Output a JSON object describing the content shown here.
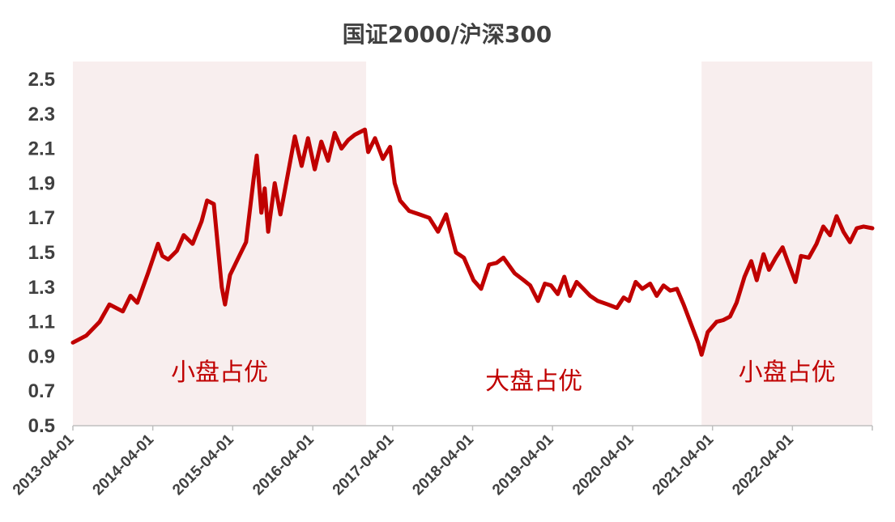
{
  "chart_data": {
    "type": "line",
    "title": "国证2000/沪深300",
    "ylim": [
      0.5,
      2.5
    ],
    "y_ticks": [
      "2.5",
      "2.3",
      "2.1",
      "1.9",
      "1.7",
      "1.5",
      "1.3",
      "1.1",
      "0.9",
      "0.7",
      "0.5"
    ],
    "x_ticks": [
      "2013-04-01",
      "2014-04-01",
      "2015-04-01",
      "2016-04-01",
      "2017-04-01",
      "2018-04-01",
      "2019-04-01",
      "2020-04-01",
      "2021-04-01",
      "2022-04-01"
    ],
    "xlim": [
      "2013-04-01",
      "2023-04-01"
    ],
    "grid": false,
    "regions": [
      {
        "label": "小盘占优",
        "start": "2013-04-01",
        "end": "2016-12-01",
        "color": "#f8eeee"
      },
      {
        "label": "大盘占优",
        "start": "2016-12-01",
        "end": "2021-02-10",
        "color": "#ffffff"
      },
      {
        "label": "小盘占优",
        "start": "2021-02-10",
        "end": "2023-04-01",
        "color": "#f8eeee"
      }
    ],
    "series": [
      {
        "color": "#c00000",
        "points": [
          [
            "2013-04-01",
            0.98
          ],
          [
            "2013-06-01",
            1.02
          ],
          [
            "2013-08-01",
            1.1
          ],
          [
            "2013-09-15",
            1.2
          ],
          [
            "2013-11-15",
            1.16
          ],
          [
            "2013-12-20",
            1.25
          ],
          [
            "2014-01-20",
            1.21
          ],
          [
            "2014-03-10",
            1.38
          ],
          [
            "2014-04-25",
            1.55
          ],
          [
            "2014-05-15",
            1.48
          ],
          [
            "2014-06-10",
            1.46
          ],
          [
            "2014-07-20",
            1.51
          ],
          [
            "2014-08-20",
            1.6
          ],
          [
            "2014-09-30",
            1.55
          ],
          [
            "2014-11-10",
            1.68
          ],
          [
            "2014-12-05",
            1.8
          ],
          [
            "2015-01-05",
            1.78
          ],
          [
            "2015-02-10",
            1.3
          ],
          [
            "2015-02-25",
            1.2
          ],
          [
            "2015-03-20",
            1.37
          ],
          [
            "2015-05-01",
            1.48
          ],
          [
            "2015-06-01",
            1.56
          ],
          [
            "2015-07-05",
            1.92
          ],
          [
            "2015-07-20",
            2.06
          ],
          [
            "2015-08-10",
            1.73
          ],
          [
            "2015-08-25",
            1.87
          ],
          [
            "2015-09-10",
            1.62
          ],
          [
            "2015-10-10",
            1.9
          ],
          [
            "2015-11-05",
            1.72
          ],
          [
            "2015-12-10",
            1.96
          ],
          [
            "2016-01-10",
            2.17
          ],
          [
            "2016-02-10",
            2.0
          ],
          [
            "2016-03-10",
            2.16
          ],
          [
            "2016-04-10",
            1.98
          ],
          [
            "2016-05-10",
            2.14
          ],
          [
            "2016-06-10",
            2.03
          ],
          [
            "2016-07-10",
            2.19
          ],
          [
            "2016-08-10",
            2.1
          ],
          [
            "2016-09-10",
            2.15
          ],
          [
            "2016-10-10",
            2.18
          ],
          [
            "2016-11-25",
            2.21
          ],
          [
            "2016-12-10",
            2.08
          ],
          [
            "2017-01-10",
            2.16
          ],
          [
            "2017-02-15",
            2.04
          ],
          [
            "2017-03-20",
            2.11
          ],
          [
            "2017-04-10",
            1.9
          ],
          [
            "2017-05-05",
            1.8
          ],
          [
            "2017-06-15",
            1.74
          ],
          [
            "2017-08-01",
            1.72
          ],
          [
            "2017-09-15",
            1.7
          ],
          [
            "2017-10-25",
            1.62
          ],
          [
            "2017-12-01",
            1.72
          ],
          [
            "2018-01-15",
            1.5
          ],
          [
            "2018-02-20",
            1.47
          ],
          [
            "2018-04-05",
            1.34
          ],
          [
            "2018-05-10",
            1.29
          ],
          [
            "2018-06-15",
            1.43
          ],
          [
            "2018-07-20",
            1.44
          ],
          [
            "2018-08-20",
            1.47
          ],
          [
            "2018-10-10",
            1.38
          ],
          [
            "2018-11-20",
            1.34
          ],
          [
            "2018-12-20",
            1.31
          ],
          [
            "2019-01-25",
            1.22
          ],
          [
            "2019-02-25",
            1.32
          ],
          [
            "2019-03-25",
            1.31
          ],
          [
            "2019-04-25",
            1.26
          ],
          [
            "2019-05-25",
            1.36
          ],
          [
            "2019-06-20",
            1.25
          ],
          [
            "2019-07-20",
            1.33
          ],
          [
            "2019-08-20",
            1.29
          ],
          [
            "2019-09-20",
            1.25
          ],
          [
            "2019-10-25",
            1.22
          ],
          [
            "2019-12-10",
            1.2
          ],
          [
            "2020-01-20",
            1.18
          ],
          [
            "2020-02-20",
            1.24
          ],
          [
            "2020-03-15",
            1.22
          ],
          [
            "2020-04-15",
            1.33
          ],
          [
            "2020-05-15",
            1.29
          ],
          [
            "2020-06-20",
            1.32
          ],
          [
            "2020-07-20",
            1.25
          ],
          [
            "2020-08-20",
            1.31
          ],
          [
            "2020-09-20",
            1.28
          ],
          [
            "2020-10-20",
            1.29
          ],
          [
            "2020-11-20",
            1.2
          ],
          [
            "2020-12-20",
            1.1
          ],
          [
            "2021-01-25",
            0.98
          ],
          [
            "2021-02-10",
            0.91
          ],
          [
            "2021-03-10",
            1.04
          ],
          [
            "2021-04-20",
            1.1
          ],
          [
            "2021-05-20",
            1.11
          ],
          [
            "2021-06-20",
            1.13
          ],
          [
            "2021-07-20",
            1.21
          ],
          [
            "2021-08-25",
            1.36
          ],
          [
            "2021-09-25",
            1.45
          ],
          [
            "2021-10-20",
            1.34
          ],
          [
            "2021-11-20",
            1.49
          ],
          [
            "2021-12-15",
            1.4
          ],
          [
            "2022-01-15",
            1.47
          ],
          [
            "2022-02-15",
            1.53
          ],
          [
            "2022-03-10",
            1.45
          ],
          [
            "2022-04-15",
            1.33
          ],
          [
            "2022-05-10",
            1.48
          ],
          [
            "2022-06-15",
            1.47
          ],
          [
            "2022-07-20",
            1.55
          ],
          [
            "2022-08-20",
            1.65
          ],
          [
            "2022-09-20",
            1.6
          ],
          [
            "2022-10-20",
            1.71
          ],
          [
            "2022-11-20",
            1.62
          ],
          [
            "2022-12-20",
            1.56
          ],
          [
            "2023-01-20",
            1.64
          ],
          [
            "2023-02-20",
            1.65
          ],
          [
            "2023-04-01",
            1.64
          ]
        ]
      }
    ]
  }
}
